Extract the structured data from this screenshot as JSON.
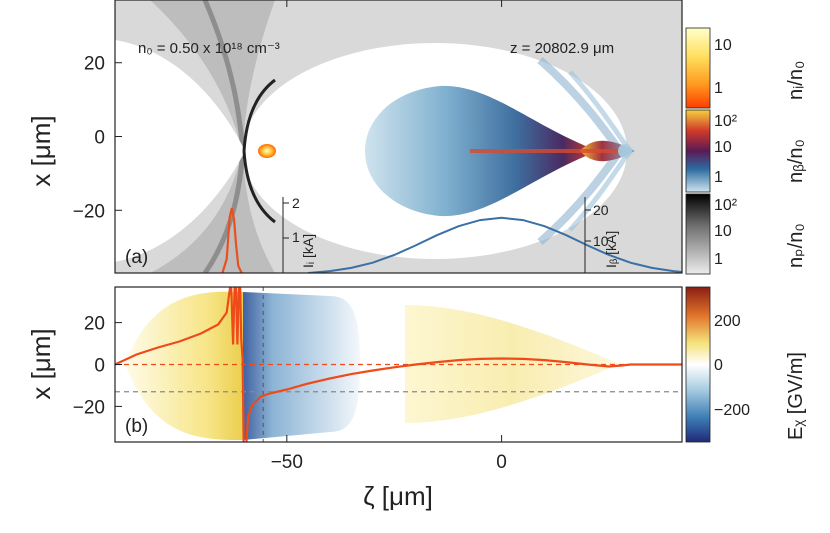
{
  "chart_data": [
    {
      "panel": "(a)",
      "type": "heatmap",
      "xlim": [
        -90,
        42
      ],
      "ylim": [
        -37,
        37
      ],
      "ylabel": "x [μm]",
      "yticks": [
        -20,
        0,
        20
      ],
      "annotation_left": "n₀ =  0.50 x 10¹⁸ cm⁻³",
      "annotation_right": "z = 20802.9  μm",
      "colorbars": [
        {
          "label": "nᵢ/n₀",
          "ticks": [
            "10",
            "1"
          ],
          "colors": [
            "#ffffcc",
            "#ffe060",
            "#ff9a20",
            "#ff3d00"
          ]
        },
        {
          "label": "nᵦ/n₀",
          "ticks": [
            "10²",
            "10",
            "1"
          ],
          "colors": [
            "#f5d040",
            "#d23a2a",
            "#5a1a55",
            "#2c6ca0",
            "#cfe3ee"
          ]
        },
        {
          "label": "nₚ/n₀",
          "ticks": [
            "10²",
            "10",
            "1"
          ],
          "colors": [
            "#000000",
            "#707070",
            "#e8e8e8"
          ]
        }
      ],
      "current_profiles": [
        {
          "name": "Iᵢ [kA]",
          "axis_ticks": [
            "2",
            "1"
          ],
          "axis_range": [
            0,
            2
          ],
          "color": "#e85020",
          "x": [
            -65,
            -64,
            -63.3,
            -62.8,
            -62.3,
            -61.8,
            -61.3,
            -60.5
          ],
          "values": [
            0,
            0.4,
            1.6,
            1.85,
            1.55,
            0.8,
            0.2,
            0
          ]
        },
        {
          "name": "Iᵦ [kA]",
          "axis_ticks": [
            "20",
            "10"
          ],
          "axis_range": [
            0,
            24
          ],
          "color": "#3b6fa5",
          "x": [
            -45,
            -40,
            -35,
            -30,
            -25,
            -20,
            -15,
            -10,
            -5,
            0,
            5,
            10,
            15,
            20,
            25,
            30,
            35,
            40,
            42
          ],
          "values": [
            0,
            0.6,
            1.6,
            3.2,
            5.6,
            8.6,
            11.8,
            14.6,
            16.5,
            17.2,
            16.5,
            14.6,
            11.8,
            8.6,
            5.6,
            3.2,
            1.6,
            0.6,
            0.3
          ]
        }
      ]
    },
    {
      "panel": "(b)",
      "type": "heatmap",
      "xlim": [
        -90,
        42
      ],
      "ylim": [
        -37,
        37
      ],
      "xlabel": "ζ [μm]",
      "ylabel": "x [μm]",
      "xticks": [
        -50,
        0
      ],
      "yticks": [
        -20,
        0,
        20
      ],
      "colorbar": {
        "label": "Eᵪ [GV/m]",
        "ticks": [
          "200",
          "0",
          "−200"
        ],
        "range": [
          -350,
          350
        ],
        "colors": [
          "#8a1e14",
          "#e0722a",
          "#f5e27a",
          "#ffffff",
          "#a9cde2",
          "#3e7eb6",
          "#1f2a78"
        ]
      },
      "on_axis_field": {
        "color": "#ee4a1a",
        "x": [
          -90,
          -85,
          -80,
          -75,
          -70,
          -66,
          -64,
          -63,
          -62.5,
          -62,
          -61.5,
          -61,
          -60.6,
          -60.3,
          -60,
          -59.5,
          -59,
          -58,
          -56,
          -54,
          -50,
          -45,
          -40,
          -35,
          -30,
          -25,
          -20,
          -15,
          -10,
          -5,
          0,
          5,
          10,
          15,
          20,
          25,
          28,
          30,
          35,
          42
        ],
        "values": [
          0,
          50,
          85,
          115,
          155,
          200,
          260,
          420,
          100,
          520,
          100,
          520,
          120,
          30,
          -500,
          -420,
          -260,
          -200,
          -160,
          -145,
          -125,
          -95,
          -70,
          -48,
          -30,
          -14,
          0,
          12,
          22,
          28,
          30,
          28,
          22,
          12,
          0,
          -10,
          -5,
          0,
          0,
          0
        ]
      },
      "reference_lines": {
        "zeta_dashed": -55.5,
        "x_dashed_red": 0,
        "x_dashed_gray": -13
      }
    }
  ]
}
